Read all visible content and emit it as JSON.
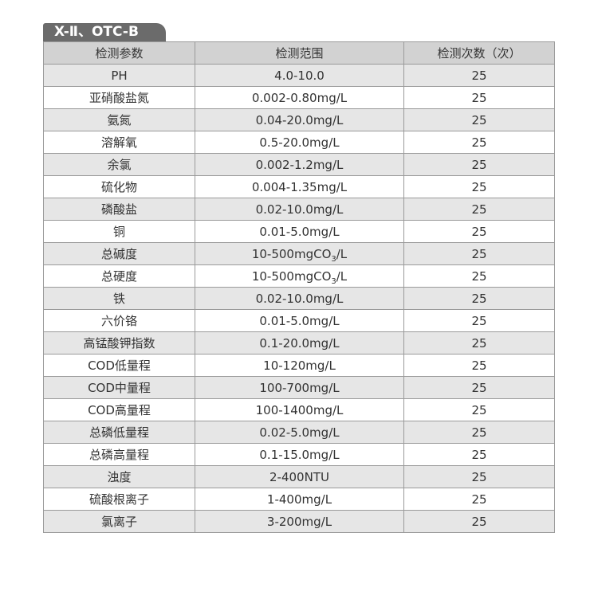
{
  "tab_title": "X-Ⅱ、OTC-B",
  "headers": [
    "检测参数",
    "检测范围",
    "检测次数（次）"
  ],
  "rows": [
    {
      "param": "PH",
      "range": "4.0-10.0",
      "count": "25"
    },
    {
      "param": "亚硝酸盐氮",
      "range": "0.002-0.80mg/L",
      "count": "25"
    },
    {
      "param": "氨氮",
      "range": "0.04-20.0mg/L",
      "count": "25"
    },
    {
      "param": "溶解氧",
      "range": "0.5-20.0mg/L",
      "count": "25"
    },
    {
      "param": "余氯",
      "range": "0.002-1.2mg/L",
      "count": "25"
    },
    {
      "param": "硫化物",
      "range": "0.004-1.35mg/L",
      "count": "25"
    },
    {
      "param": "磷酸盐",
      "range": "0.02-10.0mg/L",
      "count": "25"
    },
    {
      "param": "铜",
      "range": "0.01-5.0mg/L",
      "count": "25"
    },
    {
      "param": "总碱度",
      "range": "10-500mgCO",
      "range_sub": "3",
      "range_tail": "/L",
      "count": "25"
    },
    {
      "param": "总硬度",
      "range": "10-500mgCO",
      "range_sub": "3",
      "range_tail": "/L",
      "count": "25"
    },
    {
      "param": "铁",
      "range": "0.02-10.0mg/L",
      "count": "25"
    },
    {
      "param": "六价铬",
      "range": "0.01-5.0mg/L",
      "count": "25"
    },
    {
      "param": "高锰酸钾指数",
      "range": "0.1-20.0mg/L",
      "count": "25"
    },
    {
      "param": "COD低量程",
      "range": "10-120mg/L",
      "count": "25"
    },
    {
      "param": "COD中量程",
      "range": "100-700mg/L",
      "count": "25"
    },
    {
      "param": "COD高量程",
      "range": "100-1400mg/L",
      "count": "25"
    },
    {
      "param": "总磷低量程",
      "range": "0.02-5.0mg/L",
      "count": "25"
    },
    {
      "param": "总磷高量程",
      "range": "0.1-15.0mg/L",
      "count": "25"
    },
    {
      "param": "浊度",
      "range": "2-400NTU",
      "count": "25"
    },
    {
      "param": "硫酸根离子",
      "range": "1-400mg/L",
      "count": "25"
    },
    {
      "param": "氯离子",
      "range": "3-200mg/L",
      "count": "25"
    }
  ]
}
